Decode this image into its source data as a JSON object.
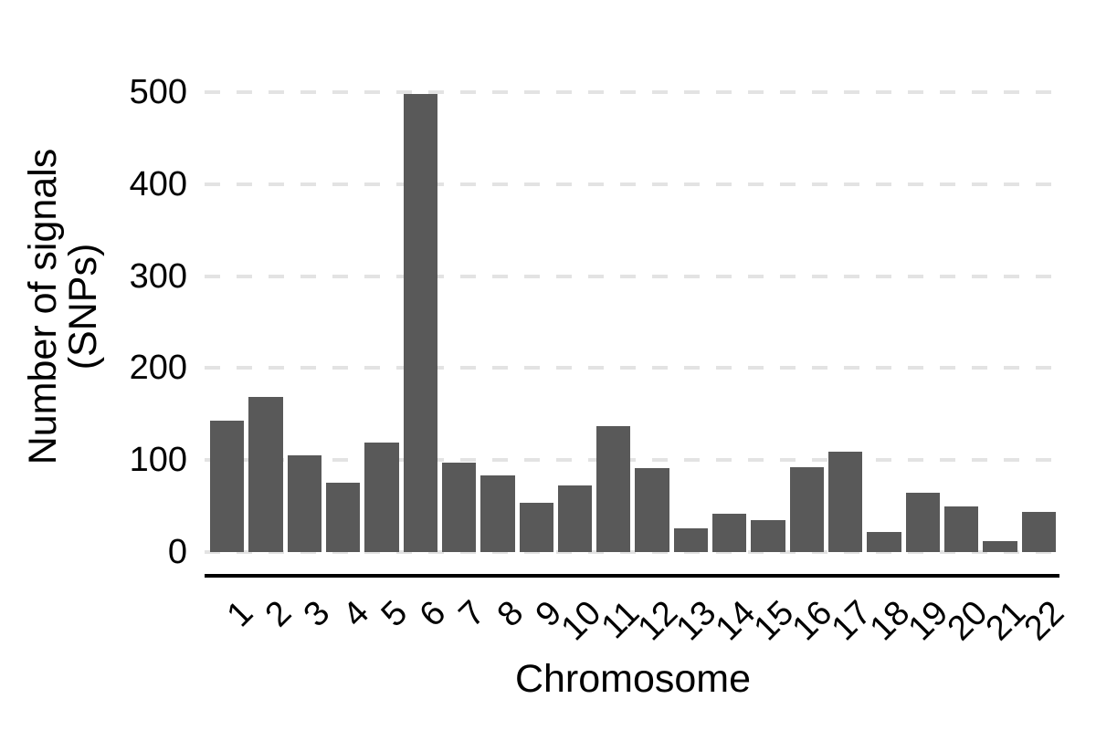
{
  "chart_data": {
    "type": "bar",
    "title": "",
    "xlabel": "Chromosome",
    "ylabel": "Number of signals (SNPs)",
    "ylabel_lines": [
      "Number of signals",
      "(SNPs)"
    ],
    "categories": [
      "1",
      "2",
      "3",
      "4",
      "5",
      "6",
      "7",
      "8",
      "9",
      "10",
      "11",
      "12",
      "13",
      "14",
      "15",
      "16",
      "17",
      "18",
      "19",
      "20",
      "21",
      "22"
    ],
    "values": [
      143,
      169,
      105,
      75,
      119,
      498,
      97,
      83,
      54,
      72,
      137,
      91,
      26,
      42,
      35,
      92,
      109,
      22,
      64,
      50,
      12,
      44
    ],
    "yticks": [
      0,
      100,
      200,
      300,
      400,
      500
    ],
    "ylim": [
      0,
      515
    ],
    "grid": "horizontal-dashed",
    "legend": "none",
    "colors": {
      "bar": "#595959",
      "gridline": "#e3e3e3",
      "axis_line": "#000000",
      "text": "#000000",
      "background": "#ffffff"
    }
  }
}
